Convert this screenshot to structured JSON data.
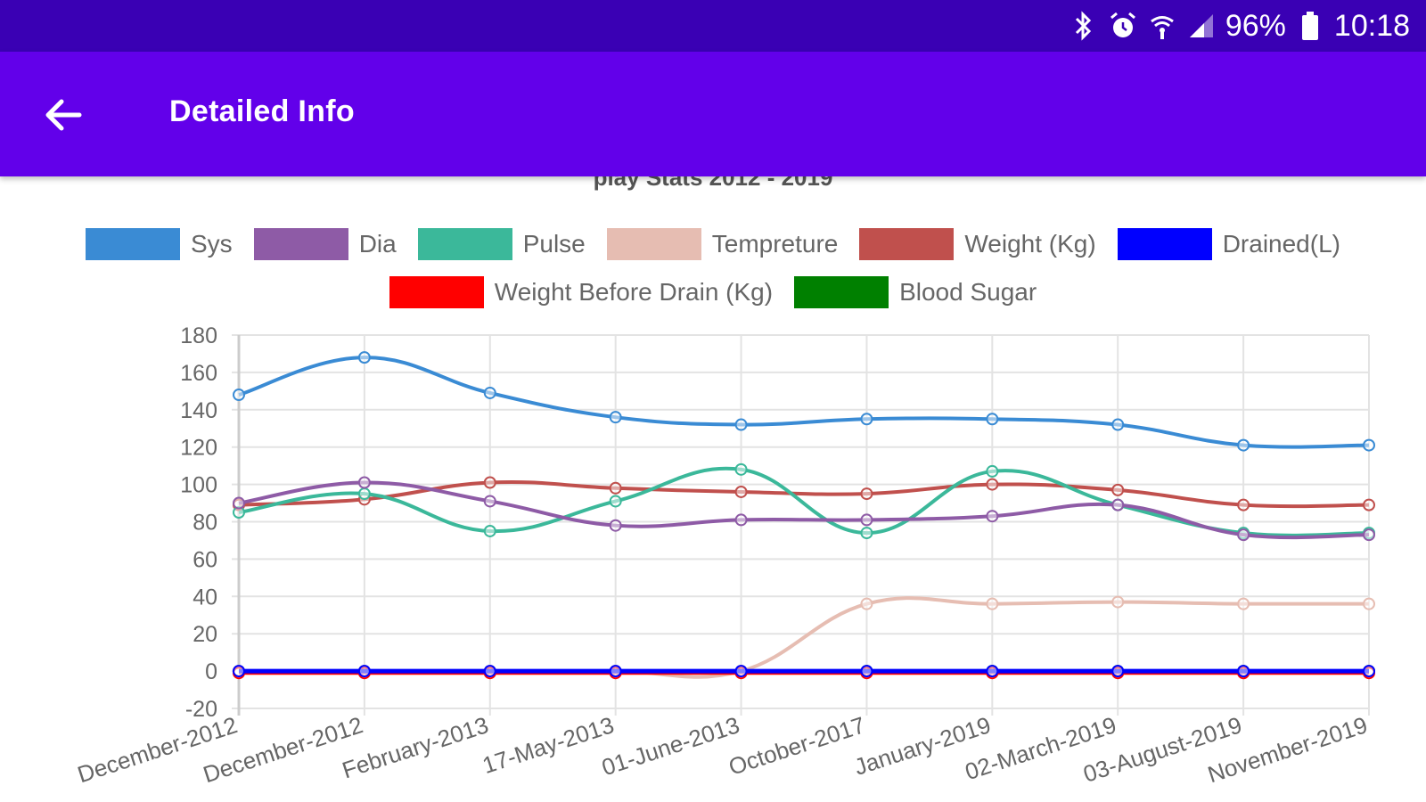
{
  "status_bar": {
    "battery": "96%",
    "time": "10:18",
    "icons": [
      "bluetooth-icon",
      "alarm-icon",
      "wifi-icon",
      "signal-icon",
      "battery-icon"
    ]
  },
  "app_bar": {
    "title": "Detailed Info",
    "back_icon": "arrow-left-icon",
    "background": "#6200ea",
    "status_background": "#3a00b4"
  },
  "chart_data": {
    "type": "line",
    "title": "play  Stats 2012 - 2019",
    "categories": [
      "December-2012",
      "December-2012",
      "February-2013",
      "17-May-2013",
      "01-June-2013",
      "October-2017",
      "January-2019",
      "02-March-2019",
      "03-August-2019",
      "November-2019"
    ],
    "y_ticks": [
      "180",
      "160",
      "140",
      "120",
      "100",
      "80",
      "60",
      "40",
      "20",
      "0",
      "-20"
    ],
    "ylim": [
      -20,
      180
    ],
    "grid": true,
    "legend_position": "top",
    "series": [
      {
        "name": "Sys",
        "color": "#3a8bd4",
        "values": [
          148,
          168,
          149,
          136,
          132,
          135,
          135,
          132,
          121,
          121
        ]
      },
      {
        "name": "Dia",
        "color": "#8e5ba6",
        "values": [
          90,
          101,
          91,
          78,
          81,
          81,
          83,
          89,
          73,
          73
        ]
      },
      {
        "name": "Pulse",
        "color": "#3bb89a",
        "values": [
          85,
          95,
          75,
          91,
          108,
          74,
          107,
          89,
          74,
          74
        ]
      },
      {
        "name": "Tempreture",
        "color": "#e6bdb2",
        "values": [
          0,
          0,
          0,
          0,
          0,
          36,
          36,
          37,
          36,
          36
        ]
      },
      {
        "name": "Weight (Kg)",
        "color": "#c0504d",
        "values": [
          89,
          92,
          101,
          98,
          96,
          95,
          100,
          97,
          89,
          89
        ]
      },
      {
        "name": "Drained(L)",
        "color": "#0000ff",
        "values": [
          0,
          0,
          0,
          0,
          0,
          0,
          0,
          0,
          0,
          0
        ]
      },
      {
        "name": "Weight Before Drain (Kg)",
        "color": "#ff0000",
        "values": [
          -1,
          -1,
          -1,
          -1,
          -1,
          -1,
          -1,
          -1,
          -1,
          -1
        ]
      },
      {
        "name": "Blood Sugar",
        "color": "#008000",
        "values": [
          0,
          0,
          0,
          0,
          0,
          0,
          0,
          0,
          0,
          0
        ]
      }
    ]
  }
}
